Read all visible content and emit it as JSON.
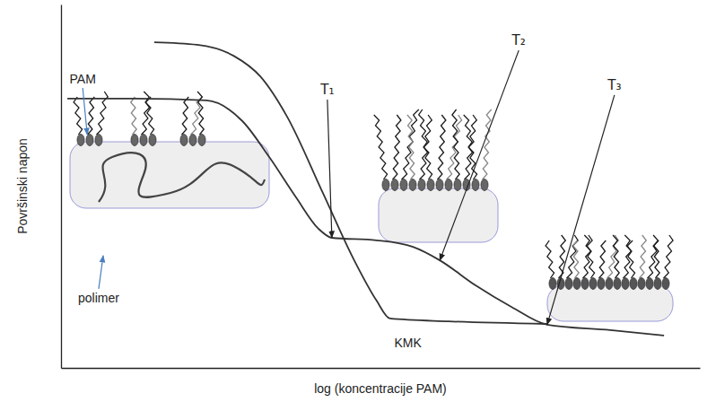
{
  "chart_data": {
    "type": "line",
    "x_label": "log (koncentracije PAM)",
    "y_label": "Površinski napon",
    "xlim": [
      0,
      100
    ],
    "ylim": [
      0,
      100
    ],
    "tick_labels": false,
    "grid": false,
    "series": [
      {
        "color": "#333333",
        "line_style": "solid",
        "x": [
          1,
          11.5,
          22.8,
          28.4,
          32.6,
          36.8,
          40.3,
          42.4,
          49.4,
          55.1,
          59.3,
          64.9,
          70.5,
          76.1,
          86.0,
          94.4
        ],
        "values": [
          74.1,
          74.1,
          73.6,
          67.9,
          58.0,
          46.9,
          38.3,
          35.8,
          35.1,
          33.3,
          29.6,
          22.7,
          16.8,
          11.9,
          10.4,
          8.9
        ]
      },
      {
        "color": "#333333",
        "line_style": "solid",
        "x": [
          14.6,
          21.3,
          27.0,
          31.2,
          35.4,
          41.0,
          45.9,
          49.4,
          51.5,
          60.7,
          76.1
        ],
        "values": [
          89.6,
          88.9,
          85.9,
          80.2,
          69.1,
          48.1,
          29.6,
          18.5,
          13.6,
          12.8,
          12.1
        ]
      }
    ],
    "annotations": [
      {
        "text": "PAM",
        "x": 4.1,
        "y": 64.2
      },
      {
        "text": "polimer",
        "x": 6.6,
        "y": 30.9
      },
      {
        "text": "T₁",
        "x": 42.4,
        "y": 35.8
      },
      {
        "text": "T₂",
        "x": 59.3,
        "y": 29.6
      },
      {
        "text": "T₃",
        "x": 76.1,
        "y": 11.9
      },
      {
        "text": "KMK",
        "x": 51.5,
        "y": 13.6
      }
    ]
  }
}
